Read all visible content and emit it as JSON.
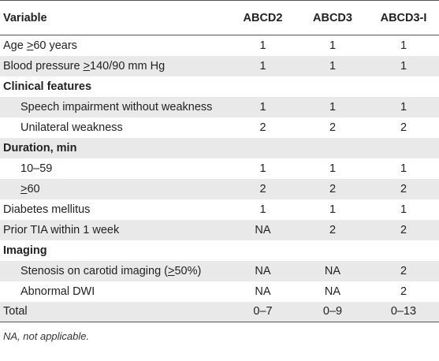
{
  "table": {
    "headers": [
      "Variable",
      "ABCD2",
      "ABCD3",
      "ABCD3-I"
    ],
    "rows": [
      {
        "label_pre": "Age ",
        "label_ul": ">",
        "label_post": "60 years",
        "type": "normal",
        "indent": false,
        "values": [
          "1",
          "1",
          "1"
        ]
      },
      {
        "label_pre": "Blood pressure ",
        "label_ul": ">",
        "label_post": "140/90 mm Hg",
        "type": "normal",
        "indent": false,
        "values": [
          "1",
          "1",
          "1"
        ]
      },
      {
        "label_pre": "Clinical features",
        "label_ul": "",
        "label_post": "",
        "type": "section",
        "indent": false,
        "values": [
          "",
          "",
          ""
        ]
      },
      {
        "label_pre": "Speech impairment without weakness",
        "label_ul": "",
        "label_post": "",
        "type": "normal",
        "indent": true,
        "values": [
          "1",
          "1",
          "1"
        ]
      },
      {
        "label_pre": "Unilateral weakness",
        "label_ul": "",
        "label_post": "",
        "type": "normal",
        "indent": true,
        "values": [
          "2",
          "2",
          "2"
        ]
      },
      {
        "label_pre": "Duration, min",
        "label_ul": "",
        "label_post": "",
        "type": "section",
        "indent": false,
        "values": [
          "",
          "",
          ""
        ]
      },
      {
        "label_pre": "10–59",
        "label_ul": "",
        "label_post": "",
        "type": "normal",
        "indent": true,
        "values": [
          "1",
          "1",
          "1"
        ]
      },
      {
        "label_pre": "",
        "label_ul": ">",
        "label_post": "60",
        "type": "normal",
        "indent": true,
        "values": [
          "2",
          "2",
          "2"
        ]
      },
      {
        "label_pre": "Diabetes mellitus",
        "label_ul": "",
        "label_post": "",
        "type": "normal",
        "indent": false,
        "values": [
          "1",
          "1",
          "1"
        ]
      },
      {
        "label_pre": "Prior TIA within 1 week",
        "label_ul": "",
        "label_post": "",
        "type": "normal",
        "indent": false,
        "values": [
          "NA",
          "2",
          "2"
        ]
      },
      {
        "label_pre": "Imaging",
        "label_ul": "",
        "label_post": "",
        "type": "section",
        "indent": false,
        "values": [
          "",
          "",
          ""
        ]
      },
      {
        "label_pre": "Stenosis on carotid imaging (",
        "label_ul": ">",
        "label_post": "50%)",
        "type": "normal",
        "indent": true,
        "values": [
          "NA",
          "NA",
          "2"
        ]
      },
      {
        "label_pre": "Abnormal DWI",
        "label_ul": "",
        "label_post": "",
        "type": "normal",
        "indent": true,
        "values": [
          "NA",
          "NA",
          "2"
        ]
      },
      {
        "label_pre": "Total",
        "label_ul": "",
        "label_post": "",
        "type": "normal",
        "indent": false,
        "values": [
          "0–7",
          "0–9",
          "0–13"
        ]
      }
    ]
  },
  "footnote": "NA, not applicable."
}
